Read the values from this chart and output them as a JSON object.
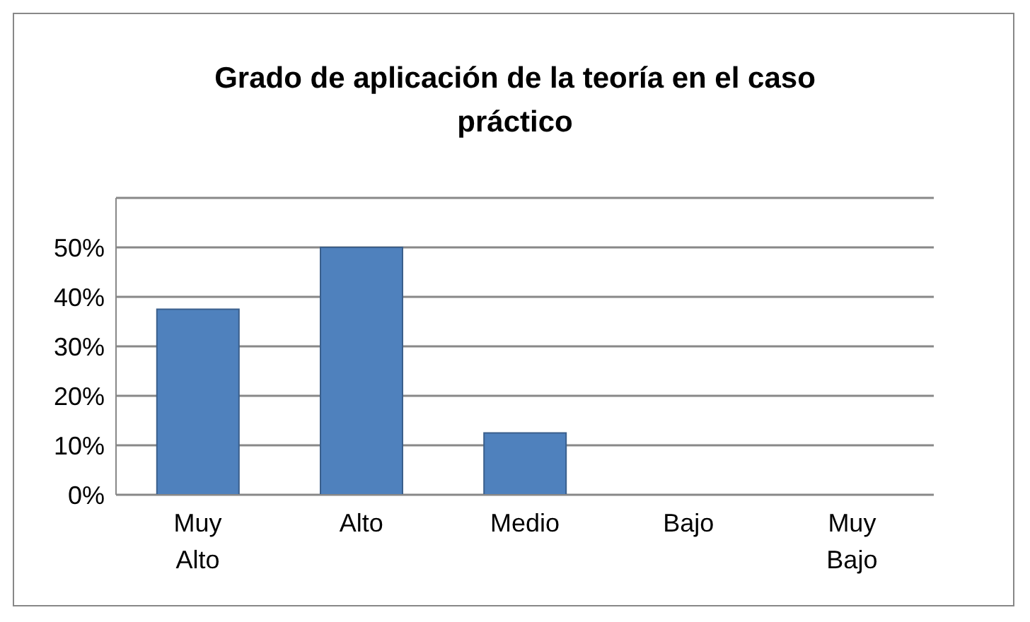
{
  "chart_data": {
    "type": "bar",
    "title": "Grado de aplicación de la teoría en el caso práctico",
    "categories": [
      "Muy Alto",
      "Alto",
      "Medio",
      "Bajo",
      "Muy Bajo"
    ],
    "values": [
      0.375,
      0.5,
      0.125,
      0,
      0
    ],
    "color": "#4f81bd",
    "ylim": [
      0,
      0.6
    ],
    "yticks": [
      {
        "value": 0,
        "label": "0%"
      },
      {
        "value": 0.1,
        "label": "10%"
      },
      {
        "value": 0.2,
        "label": "20%"
      },
      {
        "value": 0.3,
        "label": "30%"
      },
      {
        "value": 0.4,
        "label": "40%"
      },
      {
        "value": 0.5,
        "label": "50%"
      },
      {
        "value": 0.6,
        "label": null
      }
    ],
    "grid": "y"
  }
}
